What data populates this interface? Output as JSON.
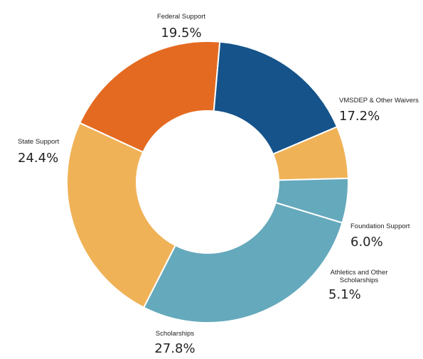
{
  "chart_data": {
    "type": "pie",
    "donut": true,
    "title": "",
    "legend": "none",
    "slices": [
      {
        "label": "Federal Support",
        "value": 19.5,
        "display": "19.5%",
        "color": "#E46A21"
      },
      {
        "label": "VMSDEP & Other Waivers",
        "value": 17.2,
        "display": "17.2%",
        "color": "#15538A"
      },
      {
        "label": "Foundation Support",
        "value": 6.0,
        "display": "6.0%",
        "color": "#F0B257"
      },
      {
        "label": "Athletics and Other Scholarships",
        "value": 5.1,
        "display": "5.1%",
        "color": "#65A9BC"
      },
      {
        "label": "Scholarships",
        "value": 27.8,
        "display": "27.8%",
        "color": "#65A9BC"
      },
      {
        "label": "State Support",
        "value": 24.4,
        "display": "24.4%",
        "color": "#F0B257"
      }
    ]
  }
}
